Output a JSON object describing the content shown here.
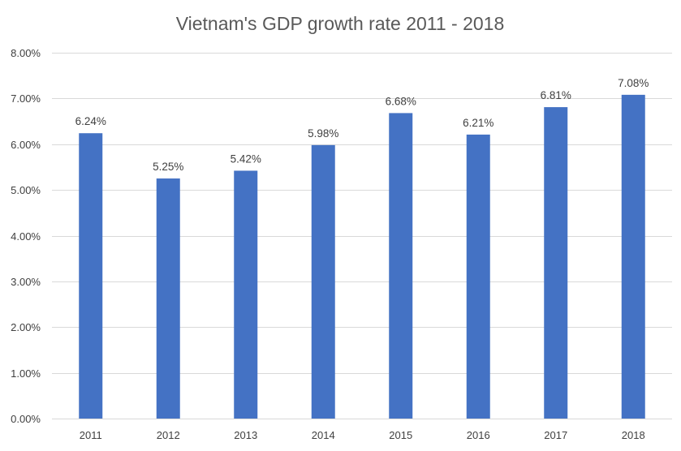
{
  "chart_data": {
    "type": "bar",
    "title": "Vietnam's GDP growth rate 2011 - 2018",
    "xlabel": "",
    "ylabel": "",
    "categories": [
      "2011",
      "2012",
      "2013",
      "2014",
      "2015",
      "2016",
      "2017",
      "2018"
    ],
    "values": [
      6.24,
      5.25,
      5.42,
      5.98,
      6.68,
      6.21,
      6.81,
      7.08
    ],
    "value_labels": [
      "6.24%",
      "5.25%",
      "5.42%",
      "5.98%",
      "6.68%",
      "6.21%",
      "6.81%",
      "7.08%"
    ],
    "ylim": [
      0,
      8
    ],
    "y_ticks": [
      0,
      1,
      2,
      3,
      4,
      5,
      6,
      7,
      8
    ],
    "y_tick_labels": [
      "0.00%",
      "1.00%",
      "2.00%",
      "3.00%",
      "4.00%",
      "5.00%",
      "6.00%",
      "7.00%",
      "8.00%"
    ],
    "grid": true,
    "bar_color": "#4472C4",
    "legend": "none"
  }
}
